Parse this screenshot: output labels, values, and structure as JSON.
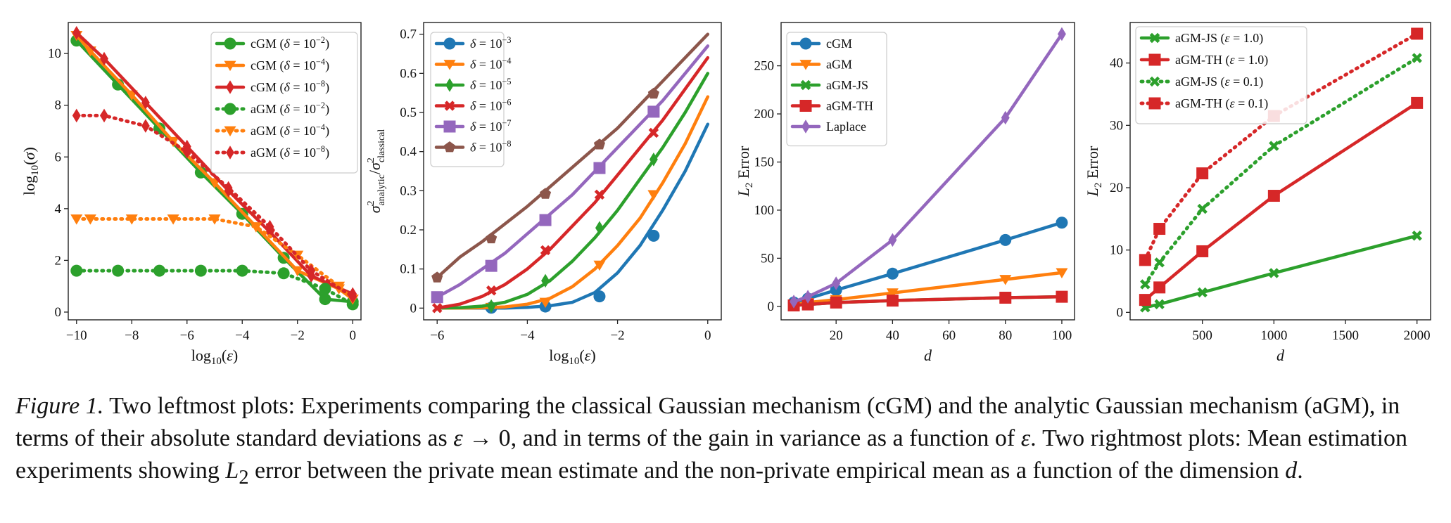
{
  "figure": {
    "label": "Figure 1.",
    "caption_html": "Two leftmost plots: Experiments comparing the classical Gaussian mechanism (cGM) and the analytic Gaussian mechanism (aGM), in terms of their absolute standard deviations as <i>ε</i> → 0, and in terms of the gain in variance as a function of <i>ε</i>. Two rightmost plots: Mean estimation experiments showing <i>L</i><sub>2</sub> error between the private mean estimate and the non-private empirical mean as a function of the dimension <i>d</i>."
  },
  "colors": {
    "green": "#2ca02c",
    "orange": "#ff7f0e",
    "red": "#d62728",
    "blue": "#1f77b4",
    "purple": "#9467bd",
    "brown": "#8c564b"
  },
  "chart_data": [
    {
      "type": "line",
      "xlabel": "log10(ε)",
      "ylabel": "log10(σ)",
      "xlim": [
        -10.3,
        0.3
      ],
      "ylim": [
        -0.3,
        11.2
      ],
      "xticks": [
        -10,
        -8,
        -6,
        -4,
        -2,
        0
      ],
      "yticks": [
        0,
        2,
        4,
        6,
        8,
        10
      ],
      "legend_position": "top-right",
      "series": [
        {
          "name": "cGM (δ = 10^-2)",
          "color": "green",
          "marker": "circle",
          "style": "solid",
          "x": [
            -10,
            -8.5,
            -7,
            -5.5,
            -4,
            -2.5,
            -1,
            0
          ],
          "y": [
            10.5,
            8.8,
            7.1,
            5.4,
            3.8,
            2.1,
            0.5,
            0.4
          ]
        },
        {
          "name": "cGM (δ = 10^-4)",
          "color": "orange",
          "marker": "triangle-down",
          "style": "solid",
          "x": [
            -10,
            -9.5,
            -8,
            -6.5,
            -5,
            -3.5,
            -2,
            -0.5,
            0
          ],
          "y": [
            10.7,
            10.1,
            8.4,
            6.6,
            5.0,
            3.3,
            1.6,
            0.9,
            0.5
          ]
        },
        {
          "name": "cGM (δ = 10^-8)",
          "color": "red",
          "marker": "diamond",
          "style": "solid",
          "x": [
            -10,
            -9,
            -7.5,
            -6,
            -4.5,
            -3,
            -1.5,
            0
          ],
          "y": [
            10.8,
            9.8,
            8.1,
            6.4,
            4.7,
            3.1,
            1.4,
            0.7
          ]
        },
        {
          "name": "aGM (δ = 10^-2)",
          "color": "green",
          "marker": "circle",
          "style": "dotted",
          "x": [
            -10,
            -8.5,
            -7,
            -5.5,
            -4,
            -2.5,
            -1,
            0
          ],
          "y": [
            1.6,
            1.6,
            1.6,
            1.6,
            1.6,
            1.5,
            0.9,
            0.3
          ]
        },
        {
          "name": "aGM (δ = 10^-4)",
          "color": "orange",
          "marker": "triangle-down",
          "style": "dotted",
          "x": [
            -10,
            -9.5,
            -8,
            -6.5,
            -5,
            -3.5,
            -2,
            -0.5,
            0
          ],
          "y": [
            3.6,
            3.6,
            3.6,
            3.6,
            3.6,
            3.3,
            2.2,
            1.0,
            0.5
          ]
        },
        {
          "name": "aGM (δ = 10^-8)",
          "color": "red",
          "marker": "diamond",
          "style": "dotted",
          "x": [
            -10,
            -9,
            -7.5,
            -6,
            -4.5,
            -3,
            -1.5,
            0
          ],
          "y": [
            7.6,
            7.6,
            7.2,
            6.2,
            4.8,
            3.3,
            1.6,
            0.6
          ]
        }
      ]
    },
    {
      "type": "line",
      "xlabel": "log10(ε)",
      "ylabel": "σ²analytic / σ²classical",
      "xlim": [
        -6.3,
        0.3
      ],
      "ylim": [
        -0.03,
        0.73
      ],
      "xticks": [
        -6,
        -4,
        -2,
        0
      ],
      "yticks": [
        0.0,
        0.1,
        0.2,
        0.3,
        0.4,
        0.5,
        0.6,
        0.7
      ],
      "legend_position": "top-left",
      "series": [
        {
          "name": "δ = 10^-3",
          "color": "blue",
          "marker": "circle",
          "x": [
            -6,
            -5.5,
            -5,
            -4.5,
            -4,
            -3.5,
            -3,
            -2.5,
            -2,
            -1.5,
            -1,
            -0.5,
            0
          ],
          "y": [
            0.0,
            0.0,
            0.0,
            0.0,
            0.002,
            0.006,
            0.015,
            0.04,
            0.09,
            0.16,
            0.25,
            0.35,
            0.47
          ],
          "markers_x": [
            -4.8,
            -3.6,
            -2.4,
            -1.2
          ],
          "markers_y": [
            0.001,
            0.004,
            0.03,
            0.185
          ]
        },
        {
          "name": "δ = 10^-4",
          "color": "orange",
          "marker": "triangle-down",
          "x": [
            -6,
            -5.5,
            -5,
            -4.5,
            -4,
            -3.5,
            -3,
            -2.5,
            -2,
            -1.5,
            -1,
            -0.5,
            0
          ],
          "y": [
            0.0,
            0.0,
            0.001,
            0.003,
            0.01,
            0.025,
            0.055,
            0.1,
            0.16,
            0.23,
            0.32,
            0.42,
            0.54
          ],
          "markers_x": [
            -4.8,
            -3.6,
            -2.4,
            -1.2
          ],
          "markers_y": [
            0.002,
            0.015,
            0.11,
            0.29
          ]
        },
        {
          "name": "δ = 10^-5",
          "color": "green",
          "marker": "diamond",
          "x": [
            -6,
            -5.5,
            -5,
            -4.5,
            -4,
            -3.5,
            -3,
            -2.5,
            -2,
            -1.5,
            -1,
            -0.5,
            0
          ],
          "y": [
            0.0,
            0.001,
            0.005,
            0.015,
            0.035,
            0.07,
            0.12,
            0.18,
            0.25,
            0.33,
            0.41,
            0.5,
            0.6
          ],
          "markers_x": [
            -4.8,
            -3.6,
            -2.4,
            -1.2
          ],
          "markers_y": [
            0.005,
            0.07,
            0.205,
            0.38
          ]
        },
        {
          "name": "δ = 10^-6",
          "color": "red",
          "marker": "x",
          "x": [
            -6,
            -5.5,
            -5,
            -4.5,
            -4,
            -3.5,
            -3,
            -2.5,
            -2,
            -1.5,
            -1,
            -0.5,
            0
          ],
          "y": [
            0.0,
            0.01,
            0.03,
            0.06,
            0.1,
            0.15,
            0.21,
            0.27,
            0.34,
            0.41,
            0.48,
            0.56,
            0.64
          ],
          "markers_x": [
            -6,
            -4.8,
            -3.6,
            -2.4,
            -1.2
          ],
          "markers_y": [
            0.0,
            0.045,
            0.148,
            0.29,
            0.448
          ]
        },
        {
          "name": "δ = 10^-7",
          "color": "purple",
          "marker": "square",
          "x": [
            -6,
            -5.5,
            -5,
            -4.5,
            -4,
            -3.5,
            -3,
            -2.5,
            -2,
            -1.5,
            -1,
            -0.5,
            0
          ],
          "y": [
            0.028,
            0.06,
            0.1,
            0.14,
            0.19,
            0.24,
            0.29,
            0.35,
            0.41,
            0.47,
            0.53,
            0.6,
            0.67
          ],
          "markers_x": [
            -6,
            -4.8,
            -3.6,
            -2.4,
            -1.2
          ],
          "markers_y": [
            0.028,
            0.108,
            0.225,
            0.358,
            0.502
          ]
        },
        {
          "name": "δ = 10^-8",
          "color": "brown",
          "marker": "pentagon",
          "x": [
            -6,
            -5.5,
            -5,
            -4.5,
            -4,
            -3.5,
            -3,
            -2.5,
            -2,
            -1.5,
            -1,
            -0.5,
            0
          ],
          "y": [
            0.078,
            0.13,
            0.17,
            0.215,
            0.26,
            0.31,
            0.36,
            0.41,
            0.46,
            0.52,
            0.58,
            0.64,
            0.7
          ],
          "markers_x": [
            -6,
            -4.8,
            -3.6,
            -2.4,
            -1.2
          ],
          "markers_y": [
            0.078,
            0.178,
            0.292,
            0.418,
            0.548
          ]
        }
      ]
    },
    {
      "type": "line",
      "xlabel": "d",
      "ylabel": "L2 Error",
      "xlim": [
        0.5,
        104.5
      ],
      "ylim": [
        -14,
        295
      ],
      "xticks": [
        20,
        40,
        60,
        80,
        100
      ],
      "yticks": [
        0,
        50,
        100,
        150,
        200,
        250
      ],
      "legend_position": "top-left",
      "series": [
        {
          "name": "cGM",
          "color": "blue",
          "marker": "circle",
          "x": [
            5,
            10,
            20,
            40,
            80,
            100
          ],
          "y": [
            4,
            8,
            17,
            34,
            69,
            87
          ]
        },
        {
          "name": "aGM",
          "color": "orange",
          "marker": "triangle-down",
          "x": [
            5,
            10,
            20,
            40,
            80,
            100
          ],
          "y": [
            2,
            4,
            7,
            14,
            28,
            35
          ]
        },
        {
          "name": "aGM-JS",
          "color": "green",
          "marker": "x",
          "x": [
            5,
            10,
            20,
            40,
            80,
            100
          ],
          "y": [
            1,
            2,
            4,
            6,
            9,
            10
          ]
        },
        {
          "name": "aGM-TH",
          "color": "red",
          "marker": "square",
          "x": [
            5,
            10,
            20,
            40,
            80,
            100
          ],
          "y": [
            1,
            2,
            4,
            6,
            9,
            10
          ]
        },
        {
          "name": "Laplace",
          "color": "purple",
          "marker": "diamond",
          "x": [
            5,
            10,
            20,
            40,
            80,
            100
          ],
          "y": [
            5,
            10,
            24,
            69,
            196,
            283
          ]
        }
      ]
    },
    {
      "type": "line",
      "xlabel": "d",
      "ylabel": "L2 Error",
      "xlim": [
        -5,
        2095
      ],
      "ylim": [
        -1.2,
        46.5
      ],
      "xticks": [
        500,
        1000,
        1500,
        2000
      ],
      "yticks": [
        0,
        10,
        20,
        30,
        40
      ],
      "legend_position": "top-left",
      "series": [
        {
          "name": "aGM-JS (ε = 1.0)",
          "color": "green",
          "marker": "x",
          "style": "solid",
          "x": [
            100,
            200,
            500,
            1000,
            2000
          ],
          "y": [
            0.8,
            1.3,
            3.2,
            6.3,
            12.3
          ]
        },
        {
          "name": "aGM-TH (ε = 1.0)",
          "color": "red",
          "marker": "square",
          "style": "solid",
          "x": [
            100,
            200,
            500,
            1000,
            2000
          ],
          "y": [
            2.0,
            4.0,
            9.8,
            18.7,
            33.6
          ]
        },
        {
          "name": "aGM-JS (ε = 0.1)",
          "color": "green",
          "marker": "x",
          "style": "dotted",
          "x": [
            100,
            200,
            500,
            1000,
            2000
          ],
          "y": [
            4.5,
            8.0,
            16.6,
            26.7,
            40.8
          ]
        },
        {
          "name": "aGM-TH (ε = 0.1)",
          "color": "red",
          "marker": "square",
          "style": "dotted",
          "x": [
            100,
            200,
            500,
            1000,
            2000
          ],
          "y": [
            8.4,
            13.4,
            22.3,
            31.5,
            44.7
          ]
        }
      ]
    }
  ]
}
